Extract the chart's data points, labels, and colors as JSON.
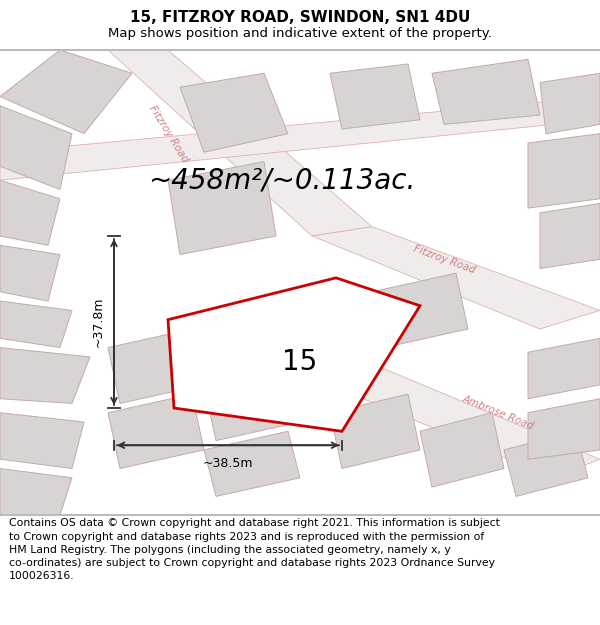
{
  "title": "15, FITZROY ROAD, SWINDON, SN1 4DU",
  "subtitle": "Map shows position and indicative extent of the property.",
  "area_text": "~458m²/~0.113ac.",
  "label_15": "15",
  "dim_width": "~38.5m",
  "dim_height": "~37.8m",
  "road1": "Fitzroy Road",
  "road2": "Ambrose Road",
  "road3": "Fitzroy Road",
  "footer": "Contains OS data © Crown copyright and database right 2021. This information is subject\nto Crown copyright and database rights 2023 and is reproduced with the permission of\nHM Land Registry. The polygons (including the associated geometry, namely x, y\nco-ordinates) are subject to Crown copyright and database rights 2023 Ordnance Survey\n100026316.",
  "bg_color": "#f0ecec",
  "main_poly_color": "#cc0000",
  "main_poly_fill": "#ffffff",
  "neighbor_fill": "#d8d4d4",
  "neighbor_edge": "#c8a8a8",
  "road_fill": "#f0ecec",
  "road_edge": "#e0b0b0",
  "title_fontsize": 11,
  "subtitle_fontsize": 9.5,
  "footer_fontsize": 7.8,
  "area_fontsize": 20,
  "label_fontsize": 20,
  "road_label_color": "#d08080",
  "arrow_color": "#333333"
}
